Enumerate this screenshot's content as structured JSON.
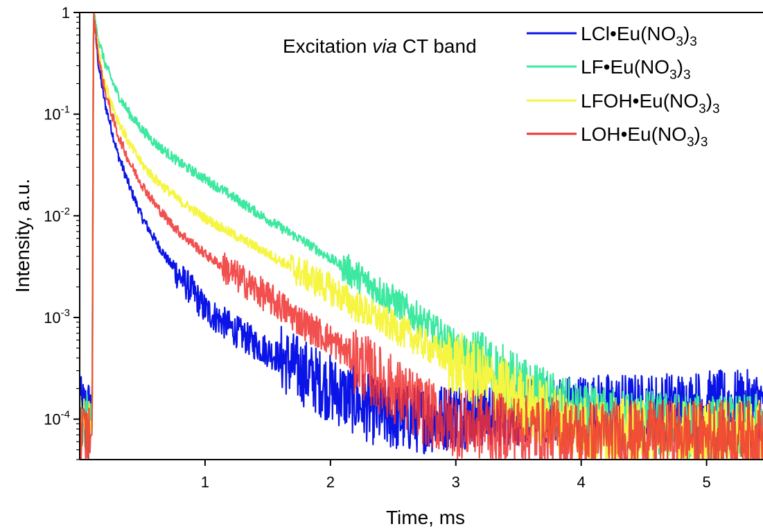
{
  "chart_data": {
    "type": "line",
    "title": "",
    "xlabel": "Time, ms",
    "ylabel": "Intensity, a.u.",
    "xlim": [
      0.0,
      5.45
    ],
    "ylim": [
      4e-05,
      1.0
    ],
    "yscale": "log",
    "grid": false,
    "legend_position": "top-right",
    "x_ticks": [
      1,
      2,
      3,
      4,
      5
    ],
    "x_tick_labels": [
      "1",
      "2",
      "3",
      "4",
      "5"
    ],
    "y_ticks": [
      1,
      0.1,
      0.01,
      0.001,
      0.0001
    ],
    "y_tick_labels": [
      {
        "base": "1",
        "exp": ""
      },
      {
        "base": "10",
        "exp": "-1"
      },
      {
        "base": "10",
        "exp": "-2"
      },
      {
        "base": "10",
        "exp": "-3"
      },
      {
        "base": "10",
        "exp": "-4"
      }
    ],
    "annotation": {
      "prefix": "Excitation ",
      "italic": "via",
      "suffix": " CT band"
    },
    "series": [
      {
        "name": "LCl•Eu(NO3)3",
        "legend_parts": [
          "LCl•Eu(NO",
          "3",
          ")",
          "3"
        ],
        "color": "#0a14e6",
        "x": [
          0.0,
          0.1,
          0.11,
          0.15,
          0.2,
          0.3,
          0.4,
          0.5,
          0.6,
          0.7,
          0.8,
          0.9,
          1.0,
          1.2,
          1.4,
          1.6,
          1.8,
          2.0,
          2.2,
          2.4,
          2.6,
          2.8,
          3.0,
          3.5,
          4.0,
          4.5,
          5.0,
          5.45
        ],
        "y": [
          0.00012,
          0.00012,
          1.0,
          0.3,
          0.13,
          0.042,
          0.019,
          0.0095,
          0.0058,
          0.0037,
          0.0025,
          0.0018,
          0.0012,
          0.0008,
          0.00055,
          0.0004,
          0.00028,
          0.0002,
          0.00015,
          0.00011,
          0.0001,
          0.0001,
          0.00011,
          0.00012,
          0.00013,
          0.00013,
          0.00014,
          0.00014
        ]
      },
      {
        "name": "LF•Eu(NO3)3",
        "legend_parts": [
          "LF•Eu(NO",
          "3",
          ")",
          "3"
        ],
        "color": "#3de8a0",
        "x": [
          0.0,
          0.1,
          0.11,
          0.15,
          0.2,
          0.3,
          0.4,
          0.5,
          0.6,
          0.8,
          1.0,
          1.2,
          1.4,
          1.6,
          1.8,
          2.0,
          2.2,
          2.4,
          2.6,
          2.8,
          3.0,
          3.2,
          3.4,
          3.6,
          3.8,
          4.0,
          4.5,
          5.0,
          5.45
        ],
        "y": [
          8e-05,
          8e-05,
          1.0,
          0.55,
          0.32,
          0.16,
          0.1,
          0.07,
          0.052,
          0.033,
          0.023,
          0.016,
          0.011,
          0.0077,
          0.0055,
          0.0038,
          0.0026,
          0.0018,
          0.0012,
          0.0008,
          0.00052,
          0.00035,
          0.00024,
          0.00017,
          0.00013,
          0.0001,
          9e-05,
          8e-05,
          8e-05
        ]
      },
      {
        "name": "LFOH•Eu(NO3)3",
        "legend_parts": [
          "LFOH•Eu(NO",
          "3",
          ")",
          "3"
        ],
        "color": "#f5f542",
        "x": [
          0.0,
          0.1,
          0.11,
          0.15,
          0.2,
          0.3,
          0.4,
          0.5,
          0.6,
          0.8,
          1.0,
          1.2,
          1.4,
          1.6,
          1.8,
          2.0,
          2.2,
          2.4,
          2.6,
          2.8,
          3.0,
          3.2,
          3.4,
          3.6,
          3.8,
          4.0,
          4.5,
          5.0,
          5.45
        ],
        "y": [
          8e-05,
          8e-05,
          1.0,
          0.42,
          0.2,
          0.09,
          0.05,
          0.032,
          0.023,
          0.014,
          0.0095,
          0.0068,
          0.005,
          0.0036,
          0.0026,
          0.0019,
          0.0013,
          0.00095,
          0.0007,
          0.0005,
          0.00035,
          0.00025,
          0.00018,
          0.00013,
          0.0001,
          8e-05,
          7e-05,
          7e-05,
          7e-05
        ]
      },
      {
        "name": "LOH•Eu(NO3)3",
        "legend_parts": [
          "LOH•Eu(NO",
          "3",
          ")",
          "3"
        ],
        "color": "#f03030",
        "x": [
          0.0,
          0.1,
          0.11,
          0.15,
          0.2,
          0.3,
          0.4,
          0.5,
          0.6,
          0.7,
          0.8,
          1.0,
          1.2,
          1.4,
          1.6,
          1.8,
          2.0,
          2.2,
          2.4,
          2.6,
          2.8,
          3.0,
          3.5,
          4.0,
          4.5,
          5.0,
          5.45
        ],
        "y": [
          7e-05,
          7e-05,
          1.0,
          0.36,
          0.17,
          0.065,
          0.033,
          0.02,
          0.013,
          0.0092,
          0.0068,
          0.0042,
          0.0028,
          0.0019,
          0.0013,
          0.00085,
          0.0006,
          0.00038,
          0.00024,
          0.00016,
          0.00011,
          9e-05,
          8e-05,
          7e-05,
          7e-05,
          7e-05,
          7e-05
        ]
      }
    ]
  }
}
